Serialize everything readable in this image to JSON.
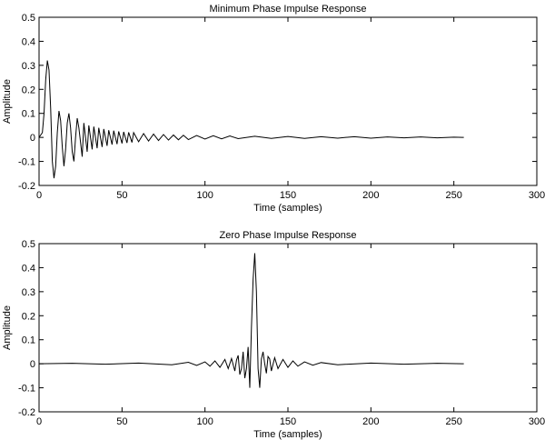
{
  "chart_data": [
    {
      "type": "line",
      "title": "Minimum Phase Impulse Response",
      "xlabel": "Time (samples)",
      "ylabel": "Amplitude",
      "xlim": [
        0,
        300
      ],
      "ylim": [
        -0.2,
        0.5
      ],
      "xticks": [
        0,
        50,
        100,
        150,
        200,
        250,
        300
      ],
      "yticks": [
        -0.2,
        -0.1,
        0,
        0.1,
        0.2,
        0.3,
        0.4,
        0.5
      ],
      "xtick_labels": [
        "0",
        "50",
        "100",
        "150",
        "200",
        "250",
        "300"
      ],
      "ytick_labels": [
        "-0.2",
        "-0.1",
        "0",
        "0.1",
        "0.2",
        "0.3",
        "0.4",
        "0.5"
      ],
      "grid": false,
      "series": [
        {
          "color": "#000000",
          "x": [
            0,
            2,
            3,
            4,
            5,
            6,
            7,
            8,
            9,
            10,
            11,
            12,
            13,
            14,
            15,
            16,
            17,
            18,
            19,
            20,
            21,
            22,
            23,
            24,
            26,
            27,
            29,
            30,
            32,
            33,
            35,
            36,
            38,
            39,
            41,
            42,
            44,
            45,
            47,
            48,
            50,
            51,
            53,
            54,
            56,
            57,
            60,
            63,
            66,
            69,
            72,
            75,
            78,
            81,
            84,
            87,
            90,
            95,
            100,
            105,
            110,
            115,
            120,
            130,
            140,
            150,
            160,
            170,
            180,
            190,
            200,
            210,
            220,
            230,
            240,
            250,
            256
          ],
          "y": [
            0,
            0.02,
            0.1,
            0.24,
            0.32,
            0.28,
            0.12,
            -0.1,
            -0.17,
            -0.12,
            0.02,
            0.11,
            0.07,
            -0.04,
            -0.12,
            -0.05,
            0.06,
            0.1,
            0.04,
            -0.06,
            -0.1,
            0.0,
            0.08,
            0.04,
            -0.08,
            0.06,
            -0.06,
            0.05,
            -0.05,
            0.045,
            -0.045,
            0.04,
            -0.04,
            0.035,
            -0.035,
            0.03,
            -0.03,
            0.028,
            -0.028,
            0.025,
            -0.025,
            0.023,
            -0.023,
            0.021,
            -0.021,
            0.02,
            -0.018,
            0.016,
            -0.015,
            0.014,
            -0.013,
            0.012,
            -0.011,
            0.01,
            -0.01,
            0.009,
            -0.009,
            0.008,
            -0.007,
            0.007,
            -0.006,
            0.006,
            -0.005,
            0.005,
            -0.004,
            0.004,
            -0.004,
            0.003,
            -0.003,
            0.003,
            -0.003,
            0.002,
            -0.002,
            0.002,
            -0.002,
            0.001,
            0
          ]
        }
      ]
    },
    {
      "type": "line",
      "title": "Zero Phase Impulse Response",
      "xlabel": "Time (samples)",
      "ylabel": "Amplitude",
      "xlim": [
        0,
        300
      ],
      "ylim": [
        -0.2,
        0.5
      ],
      "xticks": [
        0,
        50,
        100,
        150,
        200,
        250,
        300
      ],
      "yticks": [
        -0.2,
        -0.1,
        0,
        0.1,
        0.2,
        0.3,
        0.4,
        0.5
      ],
      "xtick_labels": [
        "0",
        "50",
        "100",
        "150",
        "200",
        "250",
        "300"
      ],
      "ytick_labels": [
        "-0.2",
        "-0.1",
        "0",
        "0.1",
        "0.2",
        "0.3",
        "0.4",
        "0.5"
      ],
      "grid": false,
      "series": [
        {
          "color": "#000000",
          "x": [
            0,
            20,
            40,
            60,
            80,
            90,
            95,
            100,
            103,
            106,
            109,
            112,
            114,
            116,
            118,
            119,
            120,
            121,
            122,
            123,
            124,
            125,
            126,
            127,
            128,
            129,
            130,
            131,
            132,
            133,
            134,
            135,
            136,
            137,
            138,
            139,
            140,
            142,
            144,
            147,
            150,
            153,
            156,
            160,
            165,
            170,
            180,
            200,
            220,
            240,
            256
          ],
          "y": [
            0,
            0.002,
            -0.002,
            0.003,
            -0.004,
            0.006,
            -0.007,
            0.008,
            -0.01,
            0.012,
            -0.015,
            0.018,
            -0.02,
            0.022,
            -0.03,
            0.015,
            0.035,
            -0.045,
            -0.02,
            0.05,
            -0.06,
            -0.02,
            0.07,
            -0.1,
            0.15,
            0.35,
            0.46,
            0.3,
            -0.02,
            -0.1,
            0.02,
            0.05,
            0.0,
            -0.04,
            0.03,
            0.02,
            -0.03,
            0.025,
            -0.02,
            0.018,
            -0.015,
            0.012,
            -0.01,
            0.008,
            -0.006,
            0.005,
            -0.004,
            0.003,
            -0.002,
            0.002,
            0
          ]
        }
      ]
    }
  ]
}
